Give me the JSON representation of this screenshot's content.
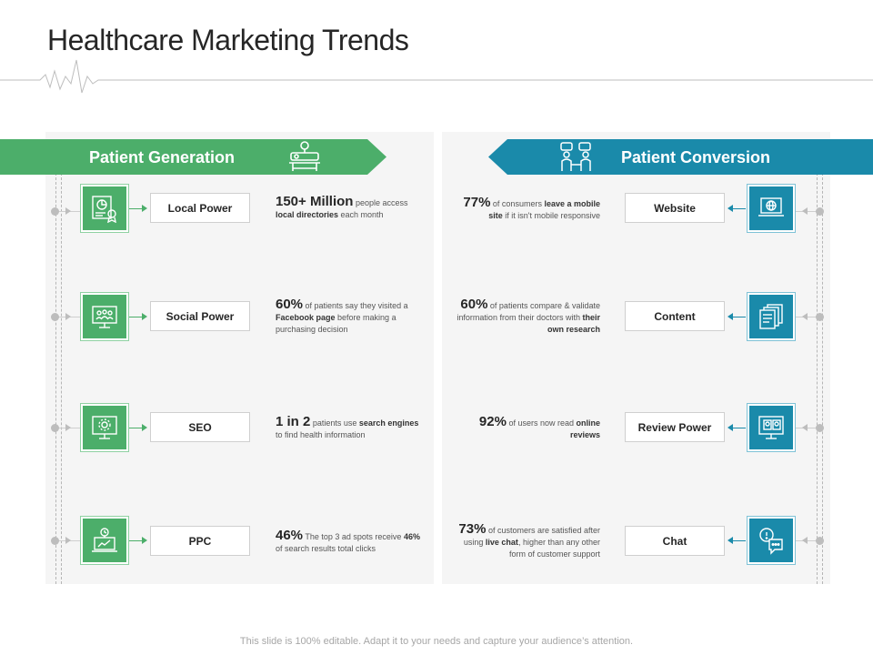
{
  "title": "Healthcare Marketing Trends",
  "footer": "This slide is 100% editable. Adapt it to your needs and capture your audience’s attention.",
  "colors": {
    "green": "#4cae6a",
    "blue": "#1a8aaa",
    "panel": "#f5f5f5"
  },
  "left": {
    "heading": "Patient Generation",
    "heading_icon": "patient-bed-icon",
    "items": [
      {
        "label": "Local Power",
        "icon": "map-location-icon",
        "stat_big": "150+ Million",
        "stat_a": " people access ",
        "stat_b": "local directories",
        "stat_c": " each month"
      },
      {
        "label": "Social Power",
        "icon": "social-network-icon",
        "stat_big": "60%",
        "stat_a": " of patients say they visited a ",
        "stat_b": "Facebook page",
        "stat_c": " before making a purchasing decision"
      },
      {
        "label": "SEO",
        "icon": "monitor-gear-icon",
        "stat_big": "1 in 2",
        "stat_a": " patients use ",
        "stat_b": "search engines",
        "stat_c": " to find health information"
      },
      {
        "label": "PPC",
        "icon": "laptop-ppc-icon",
        "stat_big": "46%",
        "stat_a": "  The top 3 ad spots receive ",
        "stat_b": "46%",
        "stat_c": " of search results total clicks"
      }
    ]
  },
  "right": {
    "heading": "Patient Conversion",
    "heading_icon": "consultation-icon",
    "items": [
      {
        "label": "Website",
        "icon": "laptop-globe-icon",
        "stat_big": "77%",
        "stat_a": " of consumers ",
        "stat_b": "leave a mobile site",
        "stat_c": " if it isn't mobile responsive"
      },
      {
        "label": "Content",
        "icon": "documents-icon",
        "stat_big": "60%",
        "stat_a": " of patients compare & validate information from their doctors with ",
        "stat_b": "their own research",
        "stat_c": ""
      },
      {
        "label": "Review Power",
        "icon": "monitor-review-icon",
        "stat_big": "92%",
        "stat_a": " of users now read ",
        "stat_b": "online reviews",
        "stat_c": ""
      },
      {
        "label": "Chat",
        "icon": "chat-bubbles-icon",
        "stat_big": "73%",
        "stat_a": " of customers are satisfied after using ",
        "stat_b": "live chat",
        "stat_c": ", higher than any other form of customer support"
      }
    ]
  }
}
